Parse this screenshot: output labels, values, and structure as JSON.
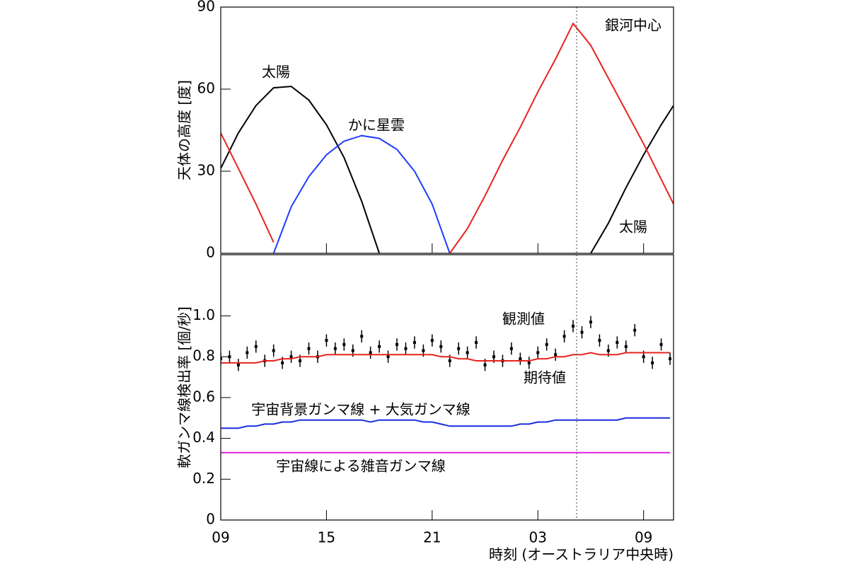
{
  "chart_data": [
    {
      "type": "line",
      "y_label": "天体の高度 [度]",
      "x": [
        0,
        1,
        2,
        3,
        4,
        5,
        6,
        7,
        8,
        9,
        10,
        11,
        12,
        13,
        14,
        15,
        16,
        17,
        18,
        19,
        20,
        21,
        22,
        23,
        24,
        25,
        25.7
      ],
      "xlim": [
        0,
        25.7
      ],
      "ylim": [
        0,
        90
      ],
      "yticks": [
        0,
        30,
        60,
        90
      ],
      "vline": 20.2,
      "series": [
        {
          "name": "太陽",
          "color": "#000000",
          "values": [
            31,
            44,
            54,
            60.5,
            61,
            56,
            47,
            35,
            19,
            0,
            null,
            null,
            null,
            null,
            null,
            null,
            null,
            null,
            null,
            null,
            null,
            0,
            11,
            24,
            36,
            47,
            54
          ]
        },
        {
          "name": "かに星雲",
          "color": "#1f3cff",
          "label_color": "#1e88c8",
          "values": [
            null,
            null,
            null,
            0,
            17,
            28,
            36,
            41,
            43,
            42,
            38,
            30,
            18,
            0,
            null,
            null,
            null,
            null,
            null,
            null,
            null,
            null,
            null,
            null,
            null,
            null,
            null
          ]
        },
        {
          "name": "銀河中心",
          "color": "#e8231e",
          "values": [
            44,
            31,
            18,
            4,
            null,
            null,
            null,
            null,
            null,
            null,
            null,
            null,
            null,
            0,
            9,
            21,
            34,
            46,
            59,
            71,
            84,
            76,
            64,
            52,
            40,
            27,
            18
          ]
        }
      ],
      "annotations": [
        "太陽"
      ]
    },
    {
      "type": "line",
      "y_label": "軟ガンマ線検出率 [個/秒]",
      "x_label": "時刻 (オーストラリア中央時)",
      "x": [
        0,
        0.5,
        1,
        1.5,
        2,
        2.5,
        3,
        3.5,
        4,
        4.5,
        5,
        5.5,
        6,
        6.5,
        7,
        7.5,
        8,
        8.5,
        9,
        9.5,
        10,
        10.5,
        11,
        11.5,
        12,
        12.5,
        13,
        13.5,
        14,
        14.5,
        15,
        15.5,
        16,
        16.5,
        17,
        17.5,
        18,
        18.5,
        19,
        19.5,
        20,
        20.5,
        21,
        21.5,
        22,
        22.5,
        23,
        23.5,
        24,
        24.5,
        25,
        25.5
      ],
      "xlim": [
        0,
        25.7
      ],
      "xticks": [
        {
          "value": 0,
          "label": "09"
        },
        {
          "value": 6,
          "label": "15"
        },
        {
          "value": 12,
          "label": "21"
        },
        {
          "value": 18,
          "label": "03"
        },
        {
          "value": 24,
          "label": "09"
        }
      ],
      "ylim": [
        0,
        1.3
      ],
      "yticks": [
        0,
        0.2,
        0.4,
        0.6,
        0.8,
        {
          "value": 1,
          "label": "1.0"
        }
      ],
      "vline": 20.2,
      "series": [
        {
          "name": "観測値",
          "color": "#000000",
          "values": [
            0.79,
            0.8,
            0.76,
            0.82,
            0.85,
            0.78,
            0.83,
            0.77,
            0.8,
            0.78,
            0.84,
            0.8,
            0.88,
            0.84,
            0.86,
            0.83,
            0.9,
            0.82,
            0.85,
            0.8,
            0.86,
            0.84,
            0.87,
            0.83,
            0.88,
            0.85,
            0.78,
            0.84,
            0.82,
            0.87,
            0.76,
            0.8,
            0.78,
            0.84,
            0.79,
            0.77,
            0.82,
            0.86,
            0.81,
            0.9,
            0.95,
            0.92,
            0.97,
            0.88,
            0.83,
            0.87,
            0.85,
            0.93,
            0.8,
            0.77,
            0.86,
            0.79
          ],
          "errors": [
            0.03,
            0.03,
            0.03,
            0.03,
            0.03,
            0.03,
            0.03,
            0.03,
            0.03,
            0.03,
            0.03,
            0.03,
            0.03,
            0.03,
            0.03,
            0.03,
            0.03,
            0.03,
            0.03,
            0.03,
            0.03,
            0.03,
            0.03,
            0.03,
            0.03,
            0.03,
            0.03,
            0.03,
            0.03,
            0.03,
            0.03,
            0.03,
            0.03,
            0.03,
            0.03,
            0.03,
            0.03,
            0.03,
            0.03,
            0.03,
            0.03,
            0.03,
            0.03,
            0.03,
            0.03,
            0.03,
            0.03,
            0.03,
            0.03,
            0.03,
            0.03,
            0.03
          ]
        },
        {
          "name": "期待値",
          "color": "#e8231e",
          "values": [
            0.77,
            0.77,
            0.77,
            0.77,
            0.77,
            0.78,
            0.78,
            0.79,
            0.79,
            0.8,
            0.8,
            0.8,
            0.81,
            0.81,
            0.81,
            0.81,
            0.81,
            0.81,
            0.81,
            0.81,
            0.81,
            0.81,
            0.81,
            0.81,
            0.81,
            0.8,
            0.8,
            0.79,
            0.79,
            0.78,
            0.78,
            0.78,
            0.78,
            0.78,
            0.78,
            0.78,
            0.79,
            0.79,
            0.8,
            0.8,
            0.81,
            0.81,
            0.82,
            0.81,
            0.81,
            0.81,
            0.82,
            0.82,
            0.82,
            0.82,
            0.82,
            0.82
          ]
        },
        {
          "name": "宇宙背景ガンマ線 + 大気ガンマ線",
          "color": "#1a2ee0",
          "label_color": "#1e88c8",
          "values": [
            0.45,
            0.45,
            0.45,
            0.46,
            0.46,
            0.47,
            0.47,
            0.48,
            0.48,
            0.49,
            0.49,
            0.49,
            0.49,
            0.49,
            0.49,
            0.49,
            0.49,
            0.48,
            0.49,
            0.49,
            0.49,
            0.49,
            0.49,
            0.48,
            0.48,
            0.47,
            0.46,
            0.46,
            0.46,
            0.46,
            0.46,
            0.46,
            0.46,
            0.46,
            0.47,
            0.47,
            0.48,
            0.48,
            0.49,
            0.49,
            0.49,
            0.49,
            0.49,
            0.49,
            0.49,
            0.49,
            0.5,
            0.5,
            0.5,
            0.5,
            0.5,
            0.5
          ]
        },
        {
          "name": "宇宙線による雑音ガンマ線",
          "color": "#e020e0",
          "values": [
            0.33,
            0.33,
            0.33,
            0.33,
            0.33,
            0.33,
            0.33,
            0.33,
            0.33,
            0.33,
            0.33,
            0.33,
            0.33,
            0.33,
            0.33,
            0.33,
            0.33,
            0.33,
            0.33,
            0.33,
            0.33,
            0.33,
            0.33,
            0.33,
            0.33,
            0.33,
            0.33,
            0.33,
            0.33,
            0.33,
            0.33,
            0.33,
            0.33,
            0.33,
            0.33,
            0.33,
            0.33,
            0.33,
            0.33,
            0.33,
            0.33,
            0.33,
            0.33,
            0.33,
            0.33,
            0.33,
            0.33,
            0.33,
            0.33,
            0.33,
            0.33,
            0.33
          ]
        }
      ]
    }
  ]
}
